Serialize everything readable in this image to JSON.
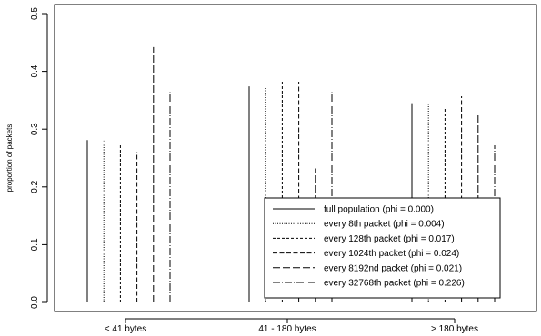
{
  "chart_data": {
    "type": "bar",
    "style": "vertical-lines",
    "categories": [
      "< 41 bytes",
      "41 - 180 bytes",
      "> 180 bytes"
    ],
    "series": [
      {
        "name": "full population (phi = 0.000)",
        "dash": "solid",
        "values": [
          0.281,
          0.374,
          0.345
        ]
      },
      {
        "name": "every 8th packet (phi = 0.004)",
        "dash": "dotted",
        "values": [
          0.28,
          0.373,
          0.343
        ]
      },
      {
        "name": "every 128th packet (phi = 0.017)",
        "dash": "short-dash",
        "values": [
          0.275,
          0.383,
          0.335
        ]
      },
      {
        "name": "every 1024th packet (phi = 0.024)",
        "dash": "medium-dash",
        "values": [
          0.26,
          0.382,
          0.357
        ]
      },
      {
        "name": "every 8192nd packet (phi = 0.021)",
        "dash": "long-dash",
        "values": [
          0.442,
          0.232,
          0.326
        ]
      },
      {
        "name": "every 32768th packet (phi = 0.226)",
        "dash": "dash-dot",
        "values": [
          0.364,
          0.364,
          0.272
        ]
      }
    ],
    "title": "",
    "xlabel": "",
    "ylabel": "proportion of packets",
    "ylim": [
      0,
      0.5
    ],
    "yticks": [
      "0.0",
      "0.1",
      "0.2",
      "0.3",
      "0.4",
      "0.5"
    ],
    "grid": false,
    "legend_position": "bottom-right"
  }
}
